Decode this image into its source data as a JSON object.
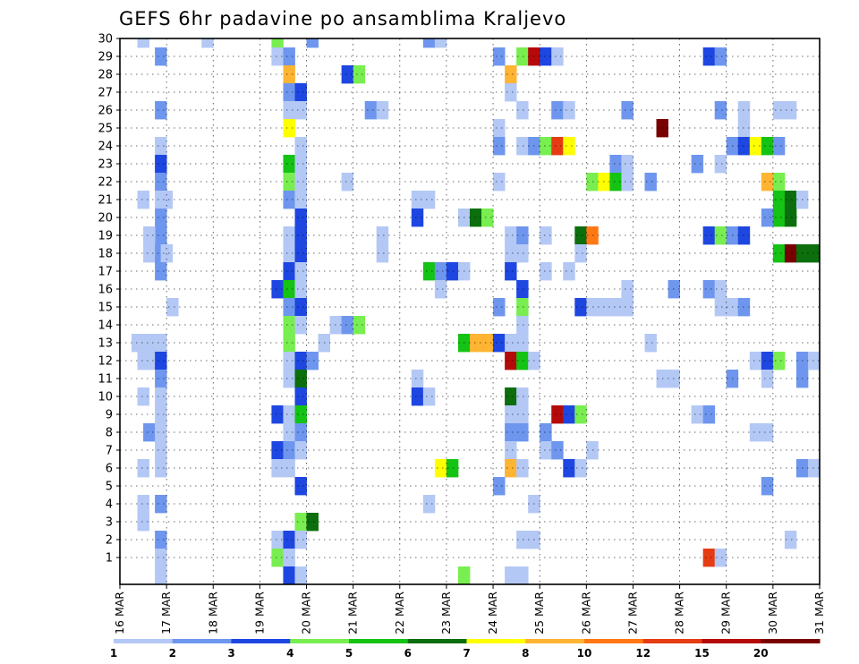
{
  "chart_data": {
    "type": "heatmap",
    "title": "GEFS 6hr padavine po ansamblima Kraljevo",
    "xlabel": "",
    "ylabel": "",
    "x_ticks": [
      "16 MAR",
      "17 MAR",
      "18 MAR",
      "19 MAR",
      "20 MAR",
      "21 MAR",
      "22 MAR",
      "23 MAR",
      "24 MAR",
      "25 MAR",
      "26 MAR",
      "27 MAR",
      "28 MAR",
      "29 MAR",
      "30 MAR",
      "31 MAR"
    ],
    "y_ticks": [
      "1",
      "2",
      "3",
      "4",
      "5",
      "6",
      "7",
      "8",
      "9",
      "10",
      "11",
      "12",
      "13",
      "14",
      "15",
      "16",
      "17",
      "18",
      "19",
      "20",
      "21",
      "22",
      "23",
      "24",
      "25",
      "26",
      "27",
      "28",
      "29",
      "30"
    ],
    "grid": true,
    "colorbar": {
      "ticks": [
        "1",
        "2",
        "3",
        "4",
        "5",
        "6",
        "7",
        "8",
        "10",
        "12",
        "15",
        "20"
      ],
      "colors": [
        "#b4c8f5",
        "#6e96ee",
        "#1e46e1",
        "#78ee50",
        "#14c314",
        "#0c6e0c",
        "#ffff00",
        "#ffb432",
        "#ff7814",
        "#e63c14",
        "#b40a0a",
        "#780000"
      ]
    },
    "cells": [
      [
        1.5,
        30,
        1
      ],
      [
        7,
        30,
        1
      ],
      [
        13,
        30,
        4
      ],
      [
        16,
        30,
        2
      ],
      [
        26,
        30,
        2
      ],
      [
        27,
        30,
        1
      ],
      [
        3,
        29,
        2
      ],
      [
        13,
        29,
        1
      ],
      [
        14,
        29,
        2
      ],
      [
        32,
        29,
        2
      ],
      [
        34,
        29,
        4
      ],
      [
        35,
        29,
        15
      ],
      [
        36,
        29,
        3
      ],
      [
        37,
        29,
        1
      ],
      [
        50,
        29,
        3
      ],
      [
        51,
        29,
        2
      ],
      [
        14,
        28,
        8
      ],
      [
        19,
        28,
        3
      ],
      [
        20,
        28,
        4
      ],
      [
        33,
        28,
        8
      ],
      [
        14,
        27,
        2
      ],
      [
        15,
        27,
        3
      ],
      [
        33,
        27,
        1
      ],
      [
        3,
        26,
        2
      ],
      [
        14,
        26,
        1
      ],
      [
        15,
        26,
        1
      ],
      [
        21,
        26,
        2
      ],
      [
        22,
        26,
        1
      ],
      [
        34,
        26,
        1
      ],
      [
        37,
        26,
        2
      ],
      [
        38,
        26,
        1
      ],
      [
        43,
        26,
        2
      ],
      [
        51,
        26,
        2
      ],
      [
        53,
        26,
        1
      ],
      [
        56,
        26,
        1
      ],
      [
        57,
        26,
        1
      ],
      [
        14,
        25,
        7
      ],
      [
        32,
        25,
        1
      ],
      [
        46,
        25,
        20
      ],
      [
        53,
        25,
        1
      ],
      [
        3,
        24,
        1
      ],
      [
        15,
        24,
        1
      ],
      [
        32,
        24,
        2
      ],
      [
        34,
        24,
        1
      ],
      [
        35,
        24,
        2
      ],
      [
        36,
        24,
        4
      ],
      [
        37,
        24,
        12
      ],
      [
        38,
        24,
        7
      ],
      [
        52,
        24,
        2
      ],
      [
        53,
        24,
        3
      ],
      [
        54,
        24,
        7
      ],
      [
        55,
        24,
        5
      ],
      [
        56,
        24,
        2
      ],
      [
        3,
        23,
        3
      ],
      [
        14,
        23,
        5
      ],
      [
        15,
        23,
        1
      ],
      [
        42,
        23,
        2
      ],
      [
        43,
        23,
        1
      ],
      [
        49,
        23,
        2
      ],
      [
        51,
        23,
        1
      ],
      [
        3,
        22,
        2
      ],
      [
        14,
        22,
        4
      ],
      [
        15,
        22,
        1
      ],
      [
        19,
        22,
        1
      ],
      [
        32,
        22,
        1
      ],
      [
        40,
        22,
        4
      ],
      [
        41,
        22,
        7
      ],
      [
        42,
        22,
        5
      ],
      [
        43,
        22,
        1
      ],
      [
        45,
        22,
        2
      ],
      [
        55,
        22,
        8
      ],
      [
        56,
        22,
        4
      ],
      [
        1.5,
        21,
        1
      ],
      [
        3,
        21,
        1
      ],
      [
        3.5,
        21,
        1
      ],
      [
        14,
        21,
        2
      ],
      [
        15,
        21,
        1
      ],
      [
        25,
        21,
        1
      ],
      [
        26,
        21,
        1
      ],
      [
        56,
        21,
        5
      ],
      [
        57,
        21,
        6
      ],
      [
        58,
        21,
        1
      ],
      [
        3,
        20,
        2
      ],
      [
        15,
        20,
        3
      ],
      [
        25,
        20,
        3
      ],
      [
        29,
        20,
        1
      ],
      [
        30,
        20,
        6
      ],
      [
        31,
        20,
        4
      ],
      [
        55,
        20,
        2
      ],
      [
        56,
        20,
        5
      ],
      [
        57,
        20,
        6
      ],
      [
        3,
        19,
        2
      ],
      [
        2,
        19,
        1
      ],
      [
        14,
        19,
        1
      ],
      [
        15,
        19,
        3
      ],
      [
        22,
        19,
        1
      ],
      [
        33,
        19,
        1
      ],
      [
        34,
        19,
        2
      ],
      [
        36,
        19,
        1
      ],
      [
        39,
        19,
        6
      ],
      [
        40,
        19,
        10
      ],
      [
        50,
        19,
        3
      ],
      [
        51,
        19,
        4
      ],
      [
        52,
        19,
        2
      ],
      [
        53,
        19,
        3
      ],
      [
        2,
        18,
        1
      ],
      [
        3,
        18,
        2
      ],
      [
        3.5,
        18,
        1
      ],
      [
        14,
        18,
        1
      ],
      [
        15,
        18,
        3
      ],
      [
        22,
        18,
        1
      ],
      [
        33,
        18,
        1
      ],
      [
        34,
        18,
        1
      ],
      [
        39,
        18,
        1
      ],
      [
        56,
        18,
        5
      ],
      [
        57,
        18,
        20
      ],
      [
        58,
        18,
        6
      ],
      [
        59,
        18,
        6
      ],
      [
        3,
        17,
        2
      ],
      [
        14,
        17,
        3
      ],
      [
        15,
        17,
        1
      ],
      [
        26,
        17,
        5
      ],
      [
        27,
        17,
        2
      ],
      [
        28,
        17,
        3
      ],
      [
        29,
        17,
        1
      ],
      [
        33,
        17,
        3
      ],
      [
        36,
        17,
        1
      ],
      [
        38,
        17,
        1
      ],
      [
        13,
        16,
        3
      ],
      [
        14,
        16,
        5
      ],
      [
        15,
        16,
        1
      ],
      [
        27,
        16,
        1
      ],
      [
        34,
        16,
        3
      ],
      [
        43,
        16,
        1
      ],
      [
        47,
        16,
        2
      ],
      [
        50,
        16,
        2
      ],
      [
        51,
        16,
        1
      ],
      [
        4,
        15,
        1
      ],
      [
        14,
        15,
        2
      ],
      [
        15,
        15,
        3
      ],
      [
        32,
        15,
        2
      ],
      [
        34,
        15,
        4
      ],
      [
        39,
        15,
        3
      ],
      [
        40,
        15,
        1
      ],
      [
        41,
        15,
        1
      ],
      [
        42,
        15,
        1
      ],
      [
        43,
        15,
        1
      ],
      [
        51,
        15,
        1
      ],
      [
        52,
        15,
        1
      ],
      [
        53,
        15,
        2
      ],
      [
        14,
        14,
        4
      ],
      [
        15,
        14,
        1
      ],
      [
        18,
        14,
        1
      ],
      [
        19,
        14,
        2
      ],
      [
        20,
        14,
        4
      ],
      [
        34,
        14,
        1
      ],
      [
        1,
        13,
        1
      ],
      [
        2,
        13,
        1
      ],
      [
        3,
        13,
        1
      ],
      [
        14,
        13,
        4
      ],
      [
        17,
        13,
        1
      ],
      [
        29,
        13,
        5
      ],
      [
        30,
        13,
        8
      ],
      [
        31,
        13,
        8
      ],
      [
        32,
        13,
        3
      ],
      [
        33,
        13,
        1
      ],
      [
        34,
        13,
        1
      ],
      [
        45,
        13,
        1
      ],
      [
        1.5,
        12,
        1
      ],
      [
        2.5,
        12,
        1
      ],
      [
        3,
        12,
        3
      ],
      [
        14,
        12,
        1
      ],
      [
        15,
        12,
        3
      ],
      [
        16,
        12,
        2
      ],
      [
        33,
        12,
        15
      ],
      [
        34,
        12,
        5
      ],
      [
        35,
        12,
        1
      ],
      [
        54,
        12,
        1
      ],
      [
        55,
        12,
        3
      ],
      [
        56,
        12,
        4
      ],
      [
        58,
        12,
        2
      ],
      [
        59,
        12,
        1
      ],
      [
        3,
        11,
        2
      ],
      [
        14,
        11,
        1
      ],
      [
        15,
        11,
        6
      ],
      [
        25,
        11,
        1
      ],
      [
        46,
        11,
        1
      ],
      [
        47,
        11,
        1
      ],
      [
        52,
        11,
        2
      ],
      [
        55,
        11,
        1
      ],
      [
        58,
        11,
        2
      ],
      [
        1.5,
        10,
        1
      ],
      [
        3,
        10,
        1
      ],
      [
        15,
        10,
        3
      ],
      [
        25,
        10,
        3
      ],
      [
        26,
        10,
        1
      ],
      [
        33,
        10,
        6
      ],
      [
        34,
        10,
        1
      ],
      [
        3,
        9,
        1
      ],
      [
        13,
        9,
        3
      ],
      [
        14,
        9,
        1
      ],
      [
        15,
        9,
        5
      ],
      [
        33,
        9,
        1
      ],
      [
        34,
        9,
        1
      ],
      [
        37,
        9,
        15
      ],
      [
        38,
        9,
        3
      ],
      [
        39,
        9,
        4
      ],
      [
        49,
        9,
        1
      ],
      [
        50,
        9,
        2
      ],
      [
        2,
        8,
        2
      ],
      [
        3,
        8,
        1
      ],
      [
        14,
        8,
        1
      ],
      [
        15,
        8,
        2
      ],
      [
        33,
        8,
        2
      ],
      [
        34,
        8,
        2
      ],
      [
        36,
        8,
        2
      ],
      [
        54,
        8,
        1
      ],
      [
        55,
        8,
        1
      ],
      [
        3,
        7,
        1
      ],
      [
        13,
        7,
        3
      ],
      [
        14,
        7,
        2
      ],
      [
        15,
        7,
        1
      ],
      [
        33,
        7,
        1
      ],
      [
        36,
        7,
        1
      ],
      [
        37,
        7,
        2
      ],
      [
        40,
        7,
        1
      ],
      [
        1.5,
        6,
        1
      ],
      [
        3,
        6,
        1
      ],
      [
        13,
        6,
        1
      ],
      [
        14,
        6,
        1
      ],
      [
        27,
        6,
        7
      ],
      [
        28,
        6,
        5
      ],
      [
        33,
        6,
        8
      ],
      [
        34,
        6,
        1
      ],
      [
        38,
        6,
        3
      ],
      [
        39,
        6,
        1
      ],
      [
        58,
        6,
        2
      ],
      [
        59,
        6,
        1
      ],
      [
        15,
        5,
        3
      ],
      [
        32,
        5,
        2
      ],
      [
        55,
        5,
        2
      ],
      [
        1.5,
        4,
        1
      ],
      [
        3,
        4,
        2
      ],
      [
        26,
        4,
        1
      ],
      [
        35,
        4,
        1
      ],
      [
        1.5,
        3,
        1
      ],
      [
        15,
        3,
        4
      ],
      [
        16,
        3,
        6
      ],
      [
        3,
        2,
        2
      ],
      [
        13,
        2,
        1
      ],
      [
        14,
        2,
        3
      ],
      [
        15,
        2,
        1
      ],
      [
        34,
        2,
        1
      ],
      [
        35,
        2,
        1
      ],
      [
        57,
        2,
        1
      ],
      [
        3,
        1,
        1
      ],
      [
        13,
        1,
        4
      ],
      [
        14,
        1,
        1
      ],
      [
        50,
        1,
        12
      ],
      [
        51,
        1,
        1
      ],
      [
        3,
        0,
        1
      ],
      [
        14,
        0,
        3
      ],
      [
        15,
        0,
        1
      ],
      [
        29,
        0,
        4
      ],
      [
        33,
        0,
        1
      ],
      [
        34,
        0,
        1
      ]
    ]
  }
}
